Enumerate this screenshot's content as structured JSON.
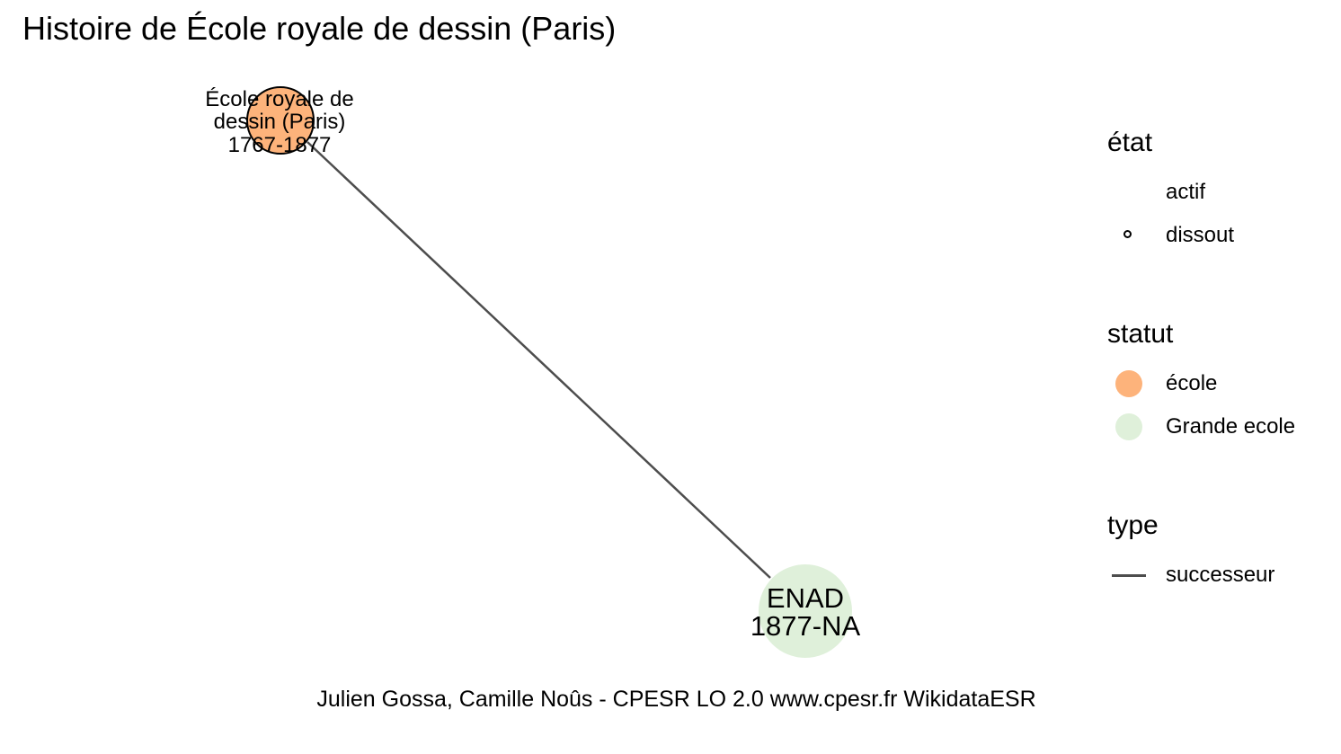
{
  "title": "Histoire de École royale de dessin (Paris)",
  "caption": "Julien Gossa, Camille Noûs - CPESR LO 2.0 www.cpesr.fr WikidataESR",
  "nodes": [
    {
      "id": "ecole-royale",
      "label_lines": [
        "École royale de",
        "dessin (Paris)",
        "1767-1877"
      ],
      "statut": "école",
      "etat": "dissout",
      "color": "#fdb37b"
    },
    {
      "id": "enad",
      "label_lines": [
        "ENAD",
        "1877-NA"
      ],
      "statut": "Grande ecole",
      "etat": "actif",
      "color": "#dff0da"
    }
  ],
  "edges": [
    {
      "from": "ecole-royale",
      "to": "enad",
      "type": "successeur",
      "color": "#4d4d4d"
    }
  ],
  "legend": {
    "etat": {
      "title": "état",
      "items": [
        "actif",
        "dissout"
      ]
    },
    "statut": {
      "title": "statut",
      "items": [
        {
          "label": "école",
          "color": "#fdb37b"
        },
        {
          "label": "Grande ecole",
          "color": "#dff0da"
        }
      ]
    },
    "type": {
      "title": "type",
      "items": [
        {
          "label": "successeur",
          "color": "#4d4d4d"
        }
      ]
    }
  }
}
